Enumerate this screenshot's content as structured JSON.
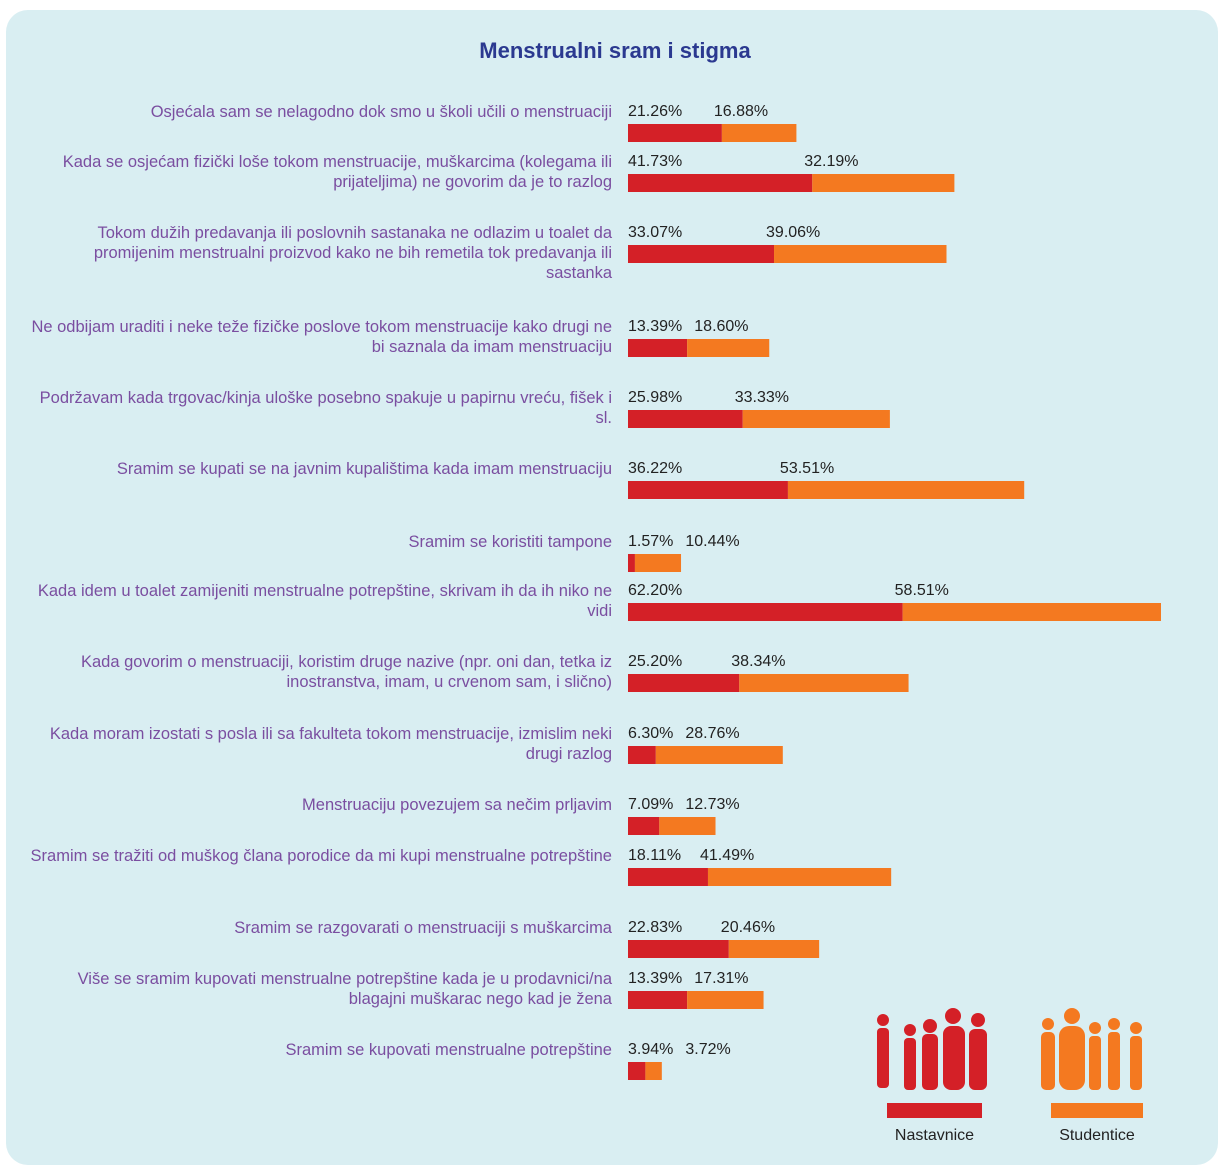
{
  "chart_data": {
    "type": "bar",
    "orientation": "horizontal",
    "stacked": true,
    "title": "Menstrualni sram i stigma",
    "categories": [
      "Osjećala sam se nelagodno dok smo u školi učili o menstruaciji",
      "Kada se osjećam fizički loše tokom menstruacije, muškarcima (kolegama ili prijateljima) ne govorim da je to razlog",
      "Tokom dužih predavanja ili poslovnih sastanaka ne odlazim u toalet da promijenim menstrualni proizvod kako ne bih remetila tok predavanja ili sastanka",
      "Ne odbijam uraditi i neke teže fizičke poslove tokom menstruacije kako drugi ne bi saznala da imam menstruaciju",
      "Podržavam kada trgovac/kinja uloške posebno spakuje u papirnu vreću, fišek i sl.",
      "Sramim se kupati se na javnim kupalištima kada imam menstruaciju",
      "Sramim se koristiti tampone",
      "Kada idem u toalet zamijeniti menstrualne potrepštine, skrivam ih da ih niko ne vidi",
      "Kada govorim o menstruaciji, koristim druge nazive (npr. oni dan, tetka iz inostranstva, imam, u crvenom sam, i slično)",
      "Kada moram izostati s posla ili sa fakulteta tokom menstruacije, izmislim neki drugi razlog",
      "Menstruaciju povezujem sa nečim prljavim",
      "Sramim se tražiti od muškog člana porodice da mi kupi menstrualne potrepštine",
      "Sramim se razgovarati o menstruaciji s muškarcima",
      "Više se sramim kupovati menstrualne potrepštine kada je u prodavnici/na blagajni muškarac nego kad je žena",
      "Sramim se kupovati menstrualne potrepštine"
    ],
    "series": [
      {
        "name": "Nastavnice",
        "color": "#d42027",
        "values": [
          21.26,
          41.73,
          33.07,
          13.39,
          25.98,
          36.22,
          1.57,
          62.2,
          25.2,
          6.3,
          7.09,
          18.11,
          22.83,
          13.39,
          3.94
        ],
        "value_labels": [
          "21.26%",
          "41.73%",
          "33.07%",
          "13.39%",
          "25.98%",
          "36.22%",
          "1.57%",
          "62.20%",
          "25.20%",
          "6.30%",
          "7.09%",
          "18.11%",
          "22.83%",
          "13.39%",
          "3.94%"
        ]
      },
      {
        "name": "Studentice",
        "color": "#f47920",
        "values": [
          16.88,
          32.19,
          39.06,
          18.6,
          33.33,
          53.51,
          10.44,
          58.51,
          38.34,
          28.76,
          12.73,
          41.49,
          20.46,
          17.31,
          3.72
        ],
        "value_labels": [
          "16.88%",
          "32.19%",
          "39.06%",
          "18.60%",
          "33.33%",
          "53.51%",
          "10.44%",
          "58.51%",
          "38.34%",
          "28.76%",
          "12.73%",
          "41.49%",
          "20.46%",
          "17.31%",
          "3.72%"
        ]
      }
    ]
  }
}
